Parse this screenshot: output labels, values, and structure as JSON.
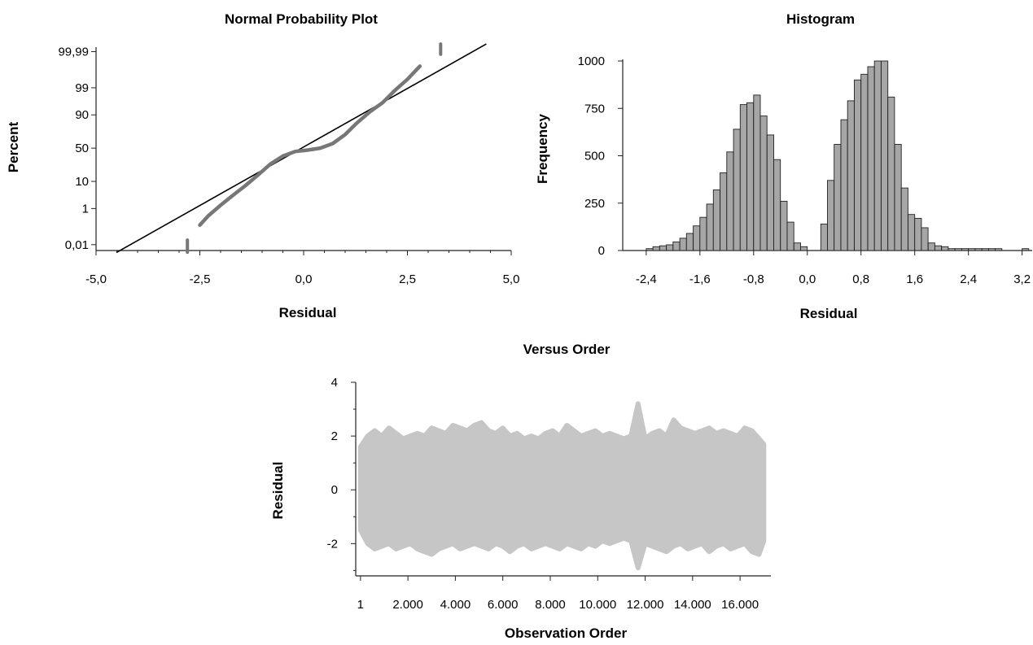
{
  "chart_data": [
    {
      "type": "line",
      "title": "Normal Probability Plot",
      "xlabel": "Residual",
      "ylabel": "Percent",
      "xlim": [
        -5.0,
        5.0
      ],
      "x_ticks": [
        -5.0,
        -2.5,
        0.0,
        2.5,
        5.0
      ],
      "x_tick_labels": [
        "-5,0",
        "-2,5",
        "0,0",
        "2,5",
        "5,0"
      ],
      "y_tick_labels": [
        "99,99",
        "99",
        "90",
        "50",
        "10",
        "1",
        "0,01"
      ],
      "y_ticks": [
        99.99,
        99,
        90,
        50,
        10,
        1,
        0.01
      ],
      "series": [
        {
          "values_x": [
            -2.5,
            -2.3,
            -2.0,
            -1.7,
            -1.4,
            -1.1,
            -0.8,
            -0.5,
            -0.2,
            0.1,
            0.4,
            0.7,
            1.0,
            1.3,
            1.6,
            1.9,
            2.2,
            2.5,
            2.8
          ],
          "values_y": [
            0.15,
            0.45,
            1.4,
            3.5,
            7.5,
            15,
            27,
            38,
            45,
            47,
            50,
            57,
            70,
            84,
            92,
            96,
            98.7,
            99.6,
            99.92
          ]
        }
      ],
      "reference_line": {
        "x": [
          -4.5,
          4.4
        ],
        "y": [
          0.003,
          99.997
        ]
      },
      "outlier_marks_x": [
        -2.8,
        3.3
      ]
    },
    {
      "type": "bar",
      "title": "Histogram",
      "xlabel": "Residual",
      "ylabel": "Frequency",
      "ylim": [
        0,
        1000
      ],
      "y_ticks": [
        0,
        250,
        500,
        750,
        1000
      ],
      "x_ticks": [
        -2.4,
        -1.6,
        -0.8,
        0.0,
        0.8,
        1.6,
        2.4,
        3.2
      ],
      "x_tick_labels": [
        "-2,4",
        "-1,6",
        "-0,8",
        "0,0",
        "0,8",
        "1,6",
        "2,4",
        "3,2"
      ],
      "y_tick_labels": [
        "0",
        "250",
        "500",
        "750",
        "1000"
      ],
      "bin_width": 0.1,
      "bin_starts": [
        -2.4,
        -2.3,
        -2.2,
        -2.1,
        -2.0,
        -1.9,
        -1.8,
        -1.7,
        -1.6,
        -1.5,
        -1.4,
        -1.3,
        -1.2,
        -1.1,
        -1.0,
        -0.9,
        -0.8,
        -0.7,
        -0.6,
        -0.5,
        -0.4,
        -0.3,
        -0.2,
        -0.1,
        0.0,
        0.1,
        0.2,
        0.3,
        0.4,
        0.5,
        0.6,
        0.7,
        0.8,
        0.9,
        1.0,
        1.1,
        1.2,
        1.3,
        1.4,
        1.5,
        1.6,
        1.7,
        1.8,
        1.9,
        2.0,
        2.1,
        2.2,
        2.3,
        2.4,
        2.5,
        2.6,
        2.7,
        2.8,
        2.9,
        3.0,
        3.1,
        3.2
      ],
      "values": [
        10,
        20,
        25,
        30,
        45,
        65,
        90,
        130,
        175,
        245,
        320,
        410,
        520,
        640,
        770,
        780,
        820,
        710,
        610,
        480,
        260,
        150,
        40,
        20,
        0,
        0,
        140,
        370,
        560,
        690,
        790,
        900,
        930,
        970,
        1000,
        1000,
        810,
        560,
        330,
        190,
        170,
        120,
        40,
        25,
        20,
        10,
        10,
        10,
        10,
        10,
        10,
        10,
        10,
        0,
        0,
        0,
        10
      ]
    },
    {
      "type": "area",
      "title": "Versus Order",
      "xlabel": "Observation Order",
      "ylabel": "Residual",
      "ylim": [
        -3.2,
        4.0
      ],
      "xlim": [
        1,
        17000
      ],
      "y_ticks": [
        -2,
        0,
        2,
        4
      ],
      "y_tick_labels": [
        "-2",
        "0",
        "2",
        "4"
      ],
      "x_ticks": [
        1,
        2000,
        4000,
        6000,
        8000,
        10000,
        12000,
        14000,
        16000
      ],
      "x_tick_labels": [
        "1",
        "2.000",
        "4.000",
        "6.000",
        "8.000",
        "10.000",
        "12.000",
        "14.000",
        "16.000"
      ],
      "upper_envelope_x": [
        1,
        300,
        600,
        900,
        1200,
        1500,
        1800,
        2100,
        2400,
        2700,
        3000,
        3300,
        3600,
        3900,
        4200,
        4500,
        4800,
        5100,
        5400,
        5700,
        6000,
        6300,
        6600,
        6900,
        7200,
        7500,
        7800,
        8100,
        8400,
        8700,
        9000,
        9300,
        9600,
        9900,
        10200,
        10500,
        10800,
        11100,
        11400,
        11700,
        12000,
        12300,
        12600,
        12900,
        13200,
        13500,
        13800,
        14100,
        14400,
        14700,
        15000,
        15300,
        15600,
        15900,
        16200,
        16500,
        16800,
        17000
      ],
      "upper_envelope_y": [
        1.6,
        2.0,
        2.2,
        2.0,
        2.3,
        2.1,
        1.9,
        2.0,
        2.1,
        2.0,
        2.3,
        2.2,
        2.1,
        2.4,
        2.3,
        2.2,
        2.4,
        2.5,
        2.2,
        2.1,
        2.3,
        2.0,
        2.1,
        1.9,
        2.0,
        1.9,
        2.1,
        2.2,
        2.0,
        2.4,
        2.2,
        2.0,
        2.1,
        2.2,
        2.0,
        2.1,
        2.0,
        1.9,
        2.0,
        3.2,
        1.9,
        2.1,
        2.2,
        2.0,
        2.6,
        2.3,
        2.2,
        2.1,
        2.2,
        2.3,
        2.1,
        2.2,
        2.1,
        2.0,
        2.3,
        2.2,
        1.9,
        1.7
      ],
      "lower_envelope_y": [
        -1.5,
        -2.0,
        -2.2,
        -2.1,
        -2.0,
        -2.2,
        -2.1,
        -2.0,
        -2.2,
        -2.3,
        -2.4,
        -2.2,
        -2.1,
        -2.0,
        -2.2,
        -2.1,
        -2.0,
        -2.1,
        -2.2,
        -2.0,
        -2.1,
        -2.3,
        -2.1,
        -2.0,
        -2.2,
        -2.1,
        -2.0,
        -2.1,
        -2.2,
        -2.0,
        -2.1,
        -2.2,
        -2.0,
        -2.1,
        -1.9,
        -2.0,
        -1.9,
        -1.8,
        -1.9,
        -2.9,
        -2.0,
        -2.1,
        -2.2,
        -2.3,
        -2.1,
        -2.0,
        -2.2,
        -2.1,
        -2.0,
        -2.3,
        -2.1,
        -2.0,
        -2.2,
        -2.1,
        -2.0,
        -2.3,
        -2.4,
        -1.9
      ]
    }
  ]
}
